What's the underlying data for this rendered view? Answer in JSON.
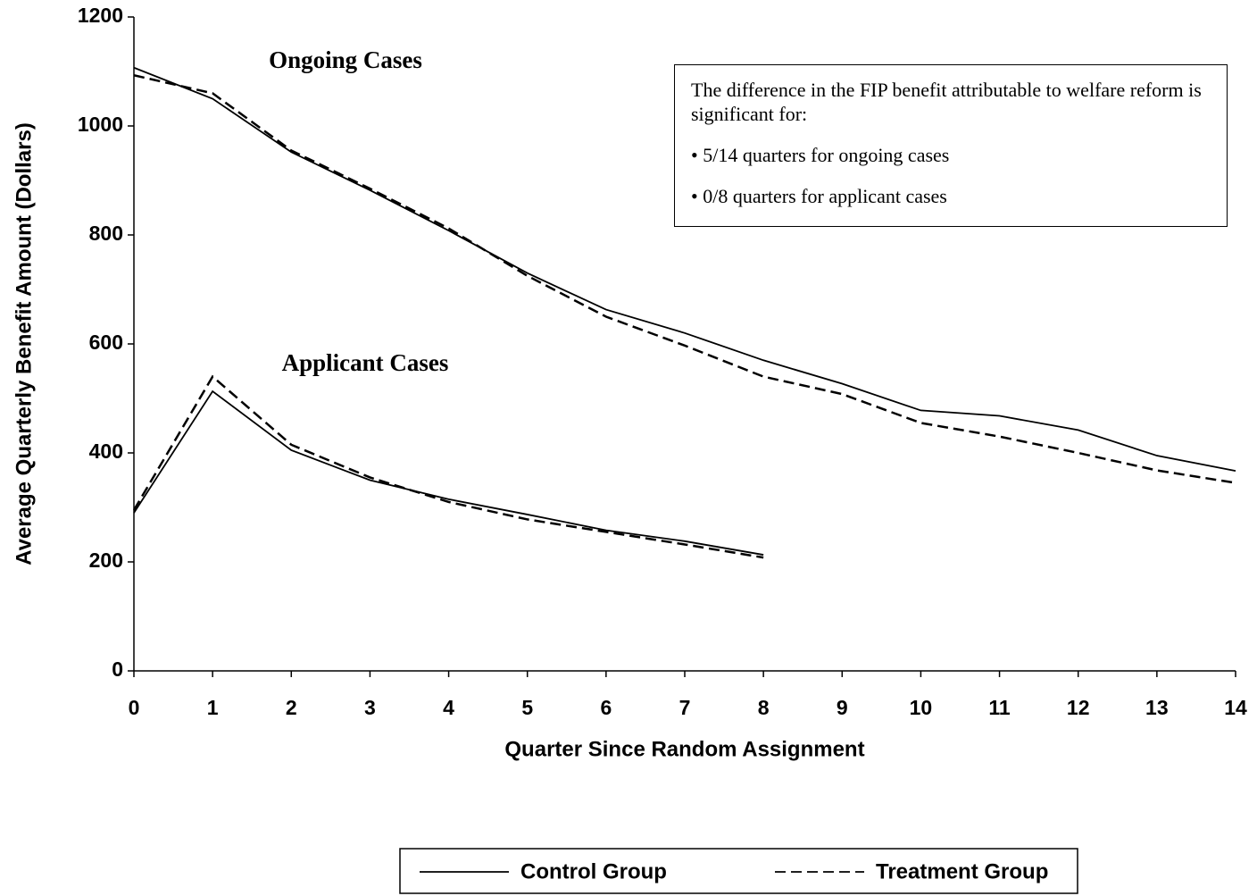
{
  "chart_data": {
    "type": "line",
    "y_label": "Average Quarterly Benefit Amount (Dollars)",
    "x_label": "Quarter Since Random Assignment",
    "x": [
      0,
      1,
      2,
      3,
      4,
      5,
      6,
      7,
      8,
      9,
      10,
      11,
      12,
      13,
      14
    ],
    "xlim": [
      0,
      14
    ],
    "xticks": [
      0,
      1,
      2,
      3,
      4,
      5,
      6,
      7,
      8,
      9,
      10,
      11,
      12,
      13,
      14
    ],
    "ylim": [
      0,
      1200
    ],
    "yticks": [
      0,
      200,
      400,
      600,
      800,
      1000,
      1200
    ],
    "legend": [
      {
        "name": "Control Group",
        "color": "#000000",
        "dashed": false
      },
      {
        "name": "Treatment Group",
        "color": "#000000",
        "dashed": true
      }
    ],
    "line_groups": [
      {
        "label": "Ongoing Cases",
        "series": [
          {
            "values": [
              1107,
              1050,
              952,
              882,
              808,
              730,
              663,
              620,
              570,
              527,
              478,
              468,
              442,
              395,
              367
            ]
          },
          {
            "values": [
              1093,
              1060,
              955,
              885,
              812,
              725,
              650,
              597,
              540,
              508,
              455,
              430,
              400,
              368,
              345
            ]
          }
        ]
      },
      {
        "label": "Applicant Cases",
        "series": [
          {
            "values": [
              290,
              513,
              405,
              350,
              315,
              287,
              258,
              238,
              213,
              null,
              null,
              null,
              null,
              null,
              null
            ]
          },
          {
            "values": [
              295,
              540,
              415,
              355,
              310,
              278,
              255,
              232,
              208,
              null,
              null,
              null,
              null,
              null,
              null
            ]
          }
        ]
      }
    ],
    "note": {
      "text": "The difference in the FIP benefit attributable to welfare reform is significant for:",
      "bullets": [
        "• 5/14 quarters for ongoing cases",
        "• 0/8 quarters for applicant cases"
      ]
    }
  }
}
